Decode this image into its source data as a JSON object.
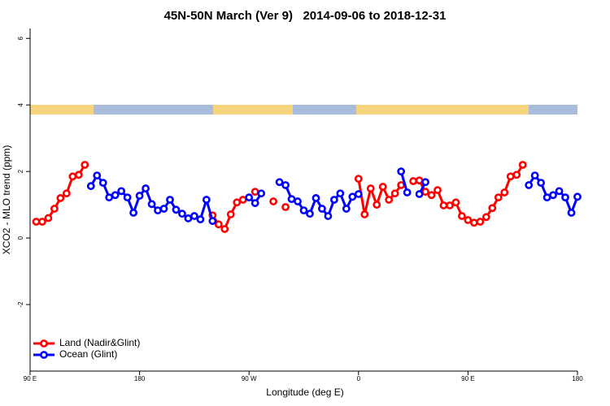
{
  "chart_data": {
    "type": "line",
    "title": "45N-50N March (Ver 9)   2014-09-06 to 2018-12-31",
    "x_label": "Longitude (deg E)",
    "y_label": "XCO2 - MLO trend (ppm)",
    "x": [
      95,
      100,
      105,
      110,
      115,
      120,
      125,
      130,
      135,
      140,
      145,
      150,
      155,
      160,
      165,
      170,
      175,
      180,
      185,
      190,
      195,
      200,
      205,
      210,
      215,
      220,
      225,
      230,
      235,
      240,
      245,
      250,
      255,
      260,
      265,
      270,
      275,
      280,
      285,
      290,
      295,
      300,
      305,
      310,
      315,
      320,
      325,
      330,
      335,
      340,
      345,
      350,
      355,
      360,
      365,
      370,
      375,
      380,
      385,
      390,
      395,
      400,
      405,
      410,
      415,
      420,
      425,
      430,
      435,
      440,
      445,
      450,
      455,
      460,
      465,
      470,
      475,
      480,
      485,
      490,
      495,
      500,
      505,
      510,
      515,
      520,
      525,
      530,
      535,
      540
    ],
    "series": [
      {
        "name": "Land (Nadir&Glint)",
        "color": "#ff0000",
        "values": [
          0.49,
          0.49,
          0.6,
          0.88,
          1.2,
          1.34,
          1.85,
          1.9,
          2.2,
          null,
          null,
          null,
          null,
          null,
          null,
          null,
          null,
          null,
          null,
          null,
          null,
          null,
          null,
          null,
          null,
          null,
          null,
          null,
          null,
          0.68,
          0.41,
          0.27,
          0.71,
          1.07,
          1.15,
          null,
          1.39,
          null,
          null,
          1.1,
          null,
          0.93,
          null,
          null,
          null,
          null,
          null,
          null,
          null,
          null,
          null,
          null,
          null,
          1.78,
          0.71,
          1.49,
          1.0,
          1.54,
          1.15,
          1.34,
          1.59,
          null,
          1.71,
          1.73,
          1.39,
          1.29,
          1.44,
          0.98,
          0.98,
          1.07,
          0.66,
          0.54,
          0.46,
          0.49,
          0.63,
          0.9,
          1.22,
          1.37,
          1.85,
          1.9,
          2.2,
          null,
          null,
          null,
          null,
          null,
          null,
          null,
          null,
          null
        ]
      },
      {
        "name": "Ocean (Glint)",
        "color": "#0000ff",
        "values": [
          null,
          null,
          null,
          null,
          null,
          null,
          null,
          null,
          null,
          1.56,
          1.88,
          1.66,
          1.22,
          1.29,
          1.41,
          1.22,
          0.76,
          1.27,
          1.49,
          1.02,
          0.83,
          0.88,
          1.15,
          0.85,
          0.73,
          0.59,
          0.66,
          0.56,
          1.15,
          0.51,
          null,
          null,
          null,
          null,
          null,
          1.22,
          1.05,
          1.34,
          null,
          null,
          1.68,
          1.59,
          1.17,
          1.1,
          0.83,
          0.73,
          1.2,
          0.88,
          0.66,
          1.15,
          1.34,
          0.88,
          1.24,
          1.32,
          null,
          null,
          null,
          null,
          null,
          null,
          2.0,
          1.37,
          null,
          1.32,
          1.68,
          null,
          null,
          null,
          null,
          null,
          null,
          null,
          null,
          null,
          null,
          null,
          null,
          null,
          null,
          null,
          null,
          1.59,
          1.88,
          1.66,
          1.22,
          1.29,
          1.41,
          1.22,
          0.76,
          1.24
        ]
      }
    ],
    "xlim": [
      90,
      540
    ],
    "xticks": [
      {
        "value": 90,
        "label": "90 E"
      },
      180,
      {
        "value": 270,
        "label": "90 W"
      },
      {
        "value": 360,
        "label": "0"
      },
      {
        "value": 450,
        "label": "90 E"
      },
      {
        "value": 540,
        "label": "180"
      }
    ],
    "ylim": [
      -4,
      6.3
    ],
    "yticks": [
      -2,
      0,
      2,
      4,
      6
    ],
    "legend": "bottom-left"
  }
}
